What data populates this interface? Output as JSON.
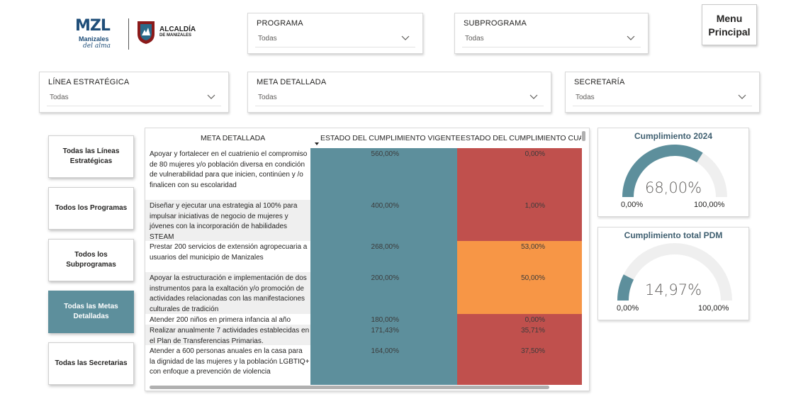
{
  "logo": {
    "brand": "MZL",
    "line1": "Manizales",
    "line2": "del alma",
    "alcaldia": "ALCALDÍA",
    "alcaldia_sub": "DE MANIZALES"
  },
  "filters": {
    "programa": {
      "label": "PROGRAMA",
      "value": "Todas"
    },
    "subprograma": {
      "label": "SUBPROGRAMA",
      "value": "Todas"
    },
    "linea": {
      "label": "LÍNEA ESTRATÉGICA",
      "value": "Todas"
    },
    "meta": {
      "label": "META DETALLADA",
      "value": "Todas"
    },
    "secretaria": {
      "label": "SECRETARÍA",
      "value": "Todas"
    }
  },
  "menu_button": {
    "label_line1": "Menu",
    "label_line2": "Principal"
  },
  "nav": [
    {
      "label": "Todas las Líneas Estratégicas",
      "active": false
    },
    {
      "label": "Todos los Programas",
      "active": false
    },
    {
      "label": "Todos los Subprogramas",
      "active": false
    },
    {
      "label": "Todas las Metas Detalladas",
      "active": true
    },
    {
      "label": "Todas las Secretarias",
      "active": false
    }
  ],
  "table": {
    "columns": [
      "META DETALLADA",
      "ESTADO DEL CUMPLIMIENTO VIGENTE",
      "ESTADO DEL CUMPLIMIENTO CUATR"
    ],
    "rows": [
      {
        "meta": "Apoyar y fortalecer en el cuatrienio el compromiso de 80 mujeres y/o población diversa en condición de vulnerabilidad para que inicien, continúen y /o finalicen con su escolaridad",
        "vigente": "560,00%",
        "cuatrienio": "0,00%",
        "cuatrienio_color": "#c0504d"
      },
      {
        "meta": "Diseñar y ejecutar una estrategia al 100% para impulsar iniciativas de negocio de mujeres y jóvenes con la incorporación de habilidades STEAM",
        "vigente": "400,00%",
        "cuatrienio": "1,00%",
        "cuatrienio_color": "#c0504d"
      },
      {
        "meta": "Prestar 200 servicios de extensión agropecuaria a usuarios del municipio de Manizales",
        "vigente": "268,00%",
        "cuatrienio": "53,00%",
        "cuatrienio_color": "#f79646"
      },
      {
        "meta": "Apoyar la estructuración e implementación de dos instrumentos para la exaltación y/o promoción de actividades relacionadas con las manifestaciones culturales de tradición",
        "vigente": "200,00%",
        "cuatrienio": "50,00%",
        "cuatrienio_color": "#f79646"
      },
      {
        "meta": "Atender 200 niños en primera infancia al año",
        "vigente": "180,00%",
        "cuatrienio": "0,00%",
        "cuatrienio_color": "#c0504d"
      },
      {
        "meta": "Realizar anualmente 7 actividades establecidas en el Plan de Transferencias Primarias.",
        "vigente": "171,43%",
        "cuatrienio": "35,71%",
        "cuatrienio_color": "#c0504d"
      },
      {
        "meta": "Atender a 600 personas anuales en la casa para la dignidad de las mujeres y la población LGBTIQ+ con enfoque a prevención de violencia",
        "vigente": "164,00%",
        "cuatrienio": "37,50%",
        "cuatrienio_color": "#c0504d"
      }
    ]
  },
  "gauges": [
    {
      "title": "Cumplimiento 2024",
      "value": 68.0,
      "display": "68,00%",
      "min": "0,00%",
      "max": "100,00%"
    },
    {
      "title": "Cumplimiento total PDM",
      "value": 14.97,
      "display": "14,97%",
      "min": "0,00%",
      "max": "100,00%"
    }
  ],
  "colors": {
    "accent": "#5d8f9c",
    "gauge_track": "#efefef",
    "red": "#c0504d",
    "orange": "#f79646"
  }
}
